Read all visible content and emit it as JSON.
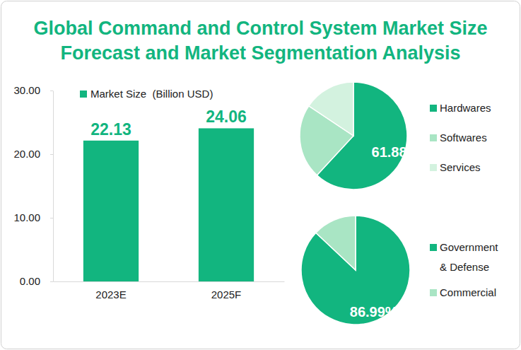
{
  "chart_data": [
    {
      "type": "bar",
      "title": "Global Command and Control System Market Size Forecast and Market Segmentation Analysis",
      "categories": [
        "2023E",
        "2025F"
      ],
      "series": [
        {
          "name": "Market Size  (Billion USD)",
          "color": "#12b57f",
          "values": [
            22.13,
            24.06
          ]
        }
      ],
      "ylim": [
        0,
        30
      ],
      "yticks": [
        {
          "value": 0,
          "label": "0.00"
        },
        {
          "value": 10,
          "label": "10.00"
        },
        {
          "value": 20,
          "label": "20.00"
        },
        {
          "value": 30,
          "label": "30.00"
        }
      ],
      "data_labels": true,
      "grid": false
    },
    {
      "type": "pie",
      "categories": [
        "Hardwares",
        "Softwares",
        "Services"
      ],
      "values": [
        61.88,
        22.5,
        15.62
      ],
      "value_labels": [
        "61.88%",
        null,
        null
      ],
      "colors": [
        "#12b57f",
        "#a9e5c4",
        "#d3f2df"
      ],
      "data_labels": true
    },
    {
      "type": "pie",
      "categories": [
        "Government & Defense",
        "Commercial"
      ],
      "values": [
        86.99,
        13.01
      ],
      "value_labels": [
        "86.99%",
        null
      ],
      "colors": [
        "#12b57f",
        "#a9e5c4"
      ],
      "data_labels": true
    }
  ]
}
